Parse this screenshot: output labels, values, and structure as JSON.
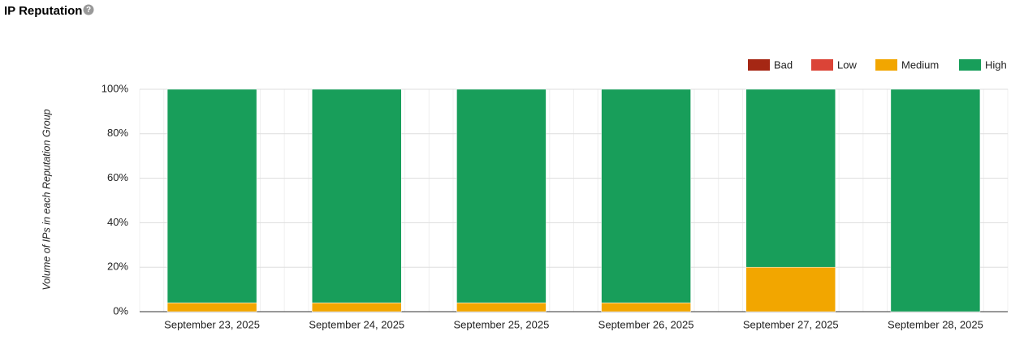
{
  "chart_data": {
    "type": "stacked_bar",
    "title": "IP Reputation",
    "y_label": "Volume of IPs in each Reputation Group",
    "categories": [
      "September 23, 2025",
      "September 24, 2025",
      "September 25, 2025",
      "September 26, 2025",
      "September 27, 2025",
      "September 28, 2025"
    ],
    "series": [
      {
        "name": "Bad",
        "color": "#a52714",
        "values": [
          0,
          0,
          0,
          0,
          0,
          0
        ]
      },
      {
        "name": "Low",
        "color": "#db4437",
        "values": [
          0,
          0,
          0,
          0,
          0,
          0
        ]
      },
      {
        "name": "Medium",
        "color": "#f2a600",
        "values": [
          4,
          4,
          4,
          4,
          20,
          0
        ]
      },
      {
        "name": "High",
        "color": "#189e5a",
        "values": [
          96,
          96,
          96,
          96,
          80,
          100
        ]
      }
    ],
    "ylim": [
      0,
      100
    ],
    "yticks": [
      {
        "value": 0,
        "label": "0%"
      },
      {
        "value": 20,
        "label": "20%"
      },
      {
        "value": 40,
        "label": "40%"
      },
      {
        "value": 60,
        "label": "60%"
      },
      {
        "value": 80,
        "label": "80%"
      },
      {
        "value": 100,
        "label": "100%"
      }
    ],
    "grid": true
  }
}
